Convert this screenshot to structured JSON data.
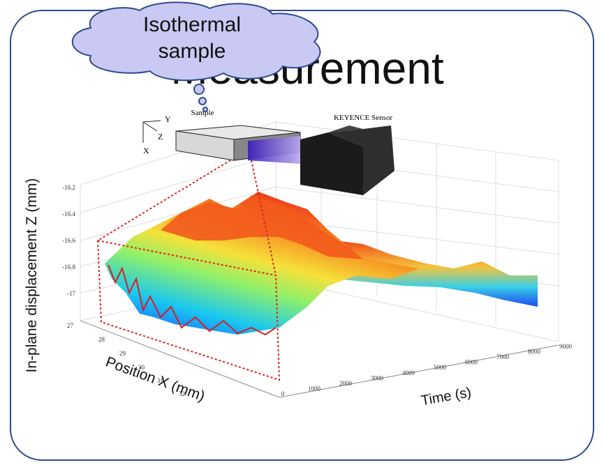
{
  "slide": {
    "title": "Measurement",
    "callout": {
      "lines": [
        "Isothermal",
        "sample"
      ]
    },
    "figure": {
      "sample_label": "Sample",
      "sensor_label": "KEYENCE Sensor",
      "axes_labels": [
        "Y",
        "Z",
        "X"
      ],
      "z_axis_label": "In-plane displacement Z (mm)",
      "position_axis_label": "Position X (mm)",
      "time_axis_label": "Time (s)",
      "z_ticks": [
        "-16.2",
        "-16.4",
        "-16.6",
        "-16.8",
        "-17"
      ],
      "position_ticks": [
        "27",
        "28",
        "29",
        "30",
        "31",
        "32"
      ],
      "time_ticks": [
        "0",
        "1000",
        "2000",
        "3000",
        "4000",
        "5000",
        "6000",
        "7000",
        "8000",
        "9000"
      ]
    }
  }
}
